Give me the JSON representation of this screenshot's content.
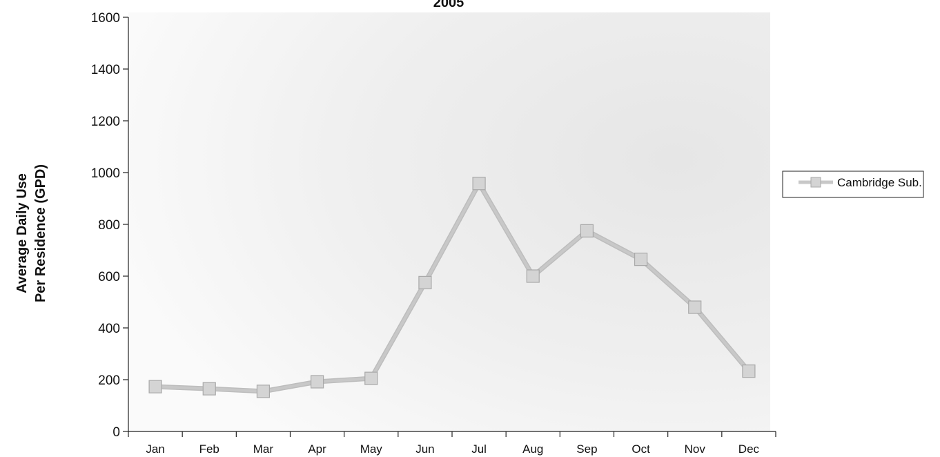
{
  "chart_data": {
    "type": "line",
    "title": "2005",
    "ylabel_lines": [
      "Average Daily Use",
      "Per Residence (GPD)"
    ],
    "xlabel": "",
    "categories": [
      "Jan",
      "Feb",
      "Mar",
      "Apr",
      "May",
      "Jun",
      "Jul",
      "Aug",
      "Sep",
      "Oct",
      "Nov",
      "Dec"
    ],
    "yticks": [
      "0",
      "200",
      "400",
      "600",
      "800",
      "1000",
      "1200",
      "1400",
      "1600"
    ],
    "ylim": [
      0,
      1600
    ],
    "legend_position": "right",
    "series": [
      {
        "name": "Cambridge Sub.",
        "values": [
          173,
          165,
          155,
          192,
          205,
          575,
          958,
          600,
          775,
          665,
          480,
          233
        ]
      }
    ],
    "grid": false,
    "colors": {
      "line": "#c8c8c8",
      "marker_fill": "#d4d4d4",
      "marker_stroke": "#a9a9a9",
      "plot_shading": "#ececec"
    }
  }
}
